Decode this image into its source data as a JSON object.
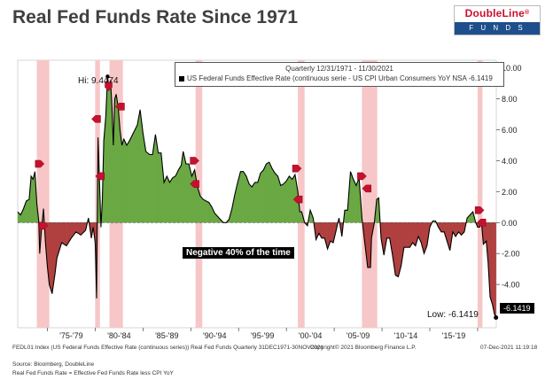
{
  "title": "Real Fed Funds Rate Since 1971",
  "logo": {
    "name": "DoubleLine",
    "sub": "F U N D S",
    "registered": "®"
  },
  "header": {
    "period": "Quarterly 12/31/1971 - 11/30/2021",
    "series": "US Federal Funds Effective Rate (continuous serie - US CPI Urban Consumers YoY NSA -6.1419"
  },
  "annotations": {
    "hi": "Hi: 9.4474",
    "low": "Low: -6.1419",
    "last_value": "-6.1419",
    "negative": "Negative 40% of the time"
  },
  "footer": {
    "index": "FEDL01 Index (US Federal Funds Effective Rate (continuous series)) Real Fed Funds  Quarterly 31DEC1971-30NOV2021",
    "copyright": "Copyright© 2021 Bloomberg Finance L.P.",
    "date": "07-Dec-2021 11:19:18",
    "source": "Source: Bloomberg, DoubleLine",
    "note": "Real Fed Funds Rate = Effective Fed Funds Rate less CPI YoY"
  },
  "colors": {
    "positive": "#6aa843",
    "negative": "#b0403f",
    "recession": "#f7c6c6",
    "marker": "#c8102e"
  },
  "chart_data": {
    "type": "area",
    "title": "Real Fed Funds Rate Since 1971",
    "x_range": [
      1971.9,
      2021.95
    ],
    "ylim": [
      -6.8,
      10.5
    ],
    "yticks": [
      10,
      8,
      6,
      4,
      2,
      0,
      -2,
      -4
    ],
    "ytick_labels": [
      "10.00",
      "8.00",
      "6.00",
      "4.00",
      "2.00",
      "0.00",
      "-2.00",
      "-4.00"
    ],
    "xticks": [
      {
        "label": "'75-'79",
        "x": 1977.5
      },
      {
        "label": "'80-'84",
        "x": 1982.5
      },
      {
        "label": "'85-'89",
        "x": 1987.5
      },
      {
        "label": "'90-'94",
        "x": 1992.5
      },
      {
        "label": "'95-'99",
        "x": 1997.5
      },
      {
        "label": "'00-'04",
        "x": 2002.5
      },
      {
        "label": "'05-'09",
        "x": 2007.5
      },
      {
        "label": "'10-'14",
        "x": 2012.5
      },
      {
        "label": "'15-'19",
        "x": 2017.5
      }
    ],
    "recessions": [
      [
        1973.9,
        1975.2
      ],
      [
        1980.0,
        1980.5
      ],
      [
        1981.5,
        1982.9
      ],
      [
        1990.5,
        1991.2
      ],
      [
        2001.2,
        2001.9
      ],
      [
        2007.9,
        2009.5
      ],
      [
        2020.0,
        2020.5
      ]
    ],
    "series": [
      {
        "name": "Real Fed Funds Rate",
        "points": [
          [
            1971.9,
            0.7
          ],
          [
            1972.2,
            0.5
          ],
          [
            1972.5,
            0.9
          ],
          [
            1972.8,
            1.4
          ],
          [
            1973.1,
            1.5
          ],
          [
            1973.3,
            3.0
          ],
          [
            1973.5,
            2.8
          ],
          [
            1973.7,
            3.3
          ],
          [
            1973.9,
            1.2
          ],
          [
            1974.1,
            0.1
          ],
          [
            1974.2,
            -2.0
          ],
          [
            1974.4,
            -0.3
          ],
          [
            1974.6,
            0.9
          ],
          [
            1974.8,
            -1.3
          ],
          [
            1975.0,
            -2.8
          ],
          [
            1975.2,
            -4.0
          ],
          [
            1975.5,
            -4.6
          ],
          [
            1975.8,
            -3.3
          ],
          [
            1976.0,
            -2.3
          ],
          [
            1976.5,
            -1.3
          ],
          [
            1977.0,
            -1.5
          ],
          [
            1977.5,
            -1.0
          ],
          [
            1978.0,
            -0.6
          ],
          [
            1978.5,
            -0.8
          ],
          [
            1979.0,
            -0.5
          ],
          [
            1979.3,
            0.3
          ],
          [
            1979.6,
            -1.0
          ],
          [
            1979.8,
            -0.3
          ],
          [
            1980.0,
            -1.3
          ],
          [
            1980.15,
            -4.9
          ],
          [
            1980.3,
            5.5
          ],
          [
            1980.45,
            2.8
          ],
          [
            1980.6,
            -0.3
          ],
          [
            1980.75,
            1.5
          ],
          [
            1980.9,
            5.3
          ],
          [
            1981.1,
            6.8
          ],
          [
            1981.3,
            9.45
          ],
          [
            1981.45,
            8.6
          ],
          [
            1981.6,
            9.2
          ],
          [
            1981.75,
            7.5
          ],
          [
            1981.9,
            5.0
          ],
          [
            1982.05,
            8.0
          ],
          [
            1982.2,
            8.3
          ],
          [
            1982.4,
            7.5
          ],
          [
            1982.6,
            6.0
          ],
          [
            1982.8,
            5.0
          ],
          [
            1983.0,
            5.4
          ],
          [
            1983.3,
            5.0
          ],
          [
            1983.6,
            5.3
          ],
          [
            1984.0,
            5.8
          ],
          [
            1984.4,
            6.3
          ],
          [
            1984.7,
            7.3
          ],
          [
            1985.0,
            5.8
          ],
          [
            1985.3,
            4.6
          ],
          [
            1985.7,
            4.4
          ],
          [
            1986.0,
            4.4
          ],
          [
            1986.3,
            5.7
          ],
          [
            1986.6,
            4.5
          ],
          [
            1986.9,
            4.5
          ],
          [
            1987.2,
            2.6
          ],
          [
            1987.5,
            3.0
          ],
          [
            1987.8,
            2.6
          ],
          [
            1988.1,
            2.9
          ],
          [
            1988.4,
            3.0
          ],
          [
            1988.7,
            3.4
          ],
          [
            1989.0,
            3.7
          ],
          [
            1989.2,
            4.6
          ],
          [
            1989.5,
            3.8
          ],
          [
            1989.8,
            3.8
          ],
          [
            1990.1,
            3.0
          ],
          [
            1990.4,
            3.4
          ],
          [
            1990.7,
            2.3
          ],
          [
            1991.0,
            1.7
          ],
          [
            1991.3,
            1.5
          ],
          [
            1991.6,
            1.4
          ],
          [
            1991.9,
            1.3
          ],
          [
            1992.2,
            1.0
          ],
          [
            1992.5,
            0.6
          ],
          [
            1992.8,
            0.4
          ],
          [
            1993.1,
            0.2
          ],
          [
            1993.4,
            0.0
          ],
          [
            1993.7,
            0.0
          ],
          [
            1994.0,
            0.2
          ],
          [
            1994.3,
            0.9
          ],
          [
            1994.6,
            1.8
          ],
          [
            1994.9,
            2.6
          ],
          [
            1995.2,
            3.3
          ],
          [
            1995.5,
            3.3
          ],
          [
            1995.8,
            3.0
          ],
          [
            1996.1,
            2.5
          ],
          [
            1996.4,
            2.3
          ],
          [
            1996.7,
            2.6
          ],
          [
            1997.0,
            2.6
          ],
          [
            1997.3,
            3.2
          ],
          [
            1997.6,
            3.4
          ],
          [
            1997.9,
            3.8
          ],
          [
            1998.2,
            3.9
          ],
          [
            1998.5,
            3.5
          ],
          [
            1998.8,
            3.2
          ],
          [
            1999.1,
            3.0
          ],
          [
            1999.4,
            2.4
          ],
          [
            1999.7,
            2.5
          ],
          [
            2000.0,
            2.7
          ],
          [
            2000.3,
            3.0
          ],
          [
            2000.6,
            2.8
          ],
          [
            2000.9,
            3.1
          ],
          [
            2001.2,
            2.0
          ],
          [
            2001.4,
            0.7
          ],
          [
            2001.6,
            0.7
          ],
          [
            2001.9,
            0.0
          ],
          [
            2002.2,
            -0.2
          ],
          [
            2002.5,
            0.8
          ],
          [
            2002.8,
            0.3
          ],
          [
            2003.1,
            -1.1
          ],
          [
            2003.4,
            -0.7
          ],
          [
            2003.7,
            -1.0
          ],
          [
            2004.0,
            -1.0
          ],
          [
            2004.3,
            -1.7
          ],
          [
            2004.6,
            -1.2
          ],
          [
            2004.9,
            -1.3
          ],
          [
            2005.2,
            -0.5
          ],
          [
            2005.5,
            0.3
          ],
          [
            2005.8,
            -0.9
          ],
          [
            2006.1,
            0.8
          ],
          [
            2006.4,
            0.8
          ],
          [
            2006.7,
            3.3
          ],
          [
            2007.0,
            2.8
          ],
          [
            2007.3,
            2.4
          ],
          [
            2007.6,
            2.9
          ],
          [
            2007.9,
            0.3
          ],
          [
            2008.2,
            -1.3
          ],
          [
            2008.5,
            -2.9
          ],
          [
            2008.8,
            -2.9
          ],
          [
            2008.9,
            -1.0
          ],
          [
            2009.2,
            0.0
          ],
          [
            2009.45,
            1.5
          ],
          [
            2009.65,
            1.6
          ],
          [
            2009.9,
            -1.0
          ],
          [
            2010.2,
            -2.1
          ],
          [
            2010.5,
            -1.0
          ],
          [
            2010.8,
            -1.0
          ],
          [
            2011.1,
            -2.1
          ],
          [
            2011.4,
            -3.4
          ],
          [
            2011.7,
            -3.5
          ],
          [
            2012.0,
            -2.8
          ],
          [
            2012.3,
            -1.6
          ],
          [
            2012.6,
            -1.6
          ],
          [
            2012.9,
            -1.6
          ],
          [
            2013.2,
            -1.3
          ],
          [
            2013.5,
            -1.5
          ],
          [
            2013.8,
            -0.9
          ],
          [
            2014.1,
            -1.3
          ],
          [
            2014.4,
            -2.0
          ],
          [
            2014.7,
            -1.5
          ],
          [
            2015.0,
            -0.3
          ],
          [
            2015.3,
            0.1
          ],
          [
            2015.6,
            0.1
          ],
          [
            2015.9,
            -0.3
          ],
          [
            2016.2,
            -0.6
          ],
          [
            2016.5,
            -0.6
          ],
          [
            2016.8,
            -1.2
          ],
          [
            2017.1,
            -1.8
          ],
          [
            2017.4,
            -0.6
          ],
          [
            2017.7,
            -0.9
          ],
          [
            2018.0,
            -0.6
          ],
          [
            2018.3,
            -0.8
          ],
          [
            2018.6,
            -0.6
          ],
          [
            2018.9,
            0.3
          ],
          [
            2019.2,
            0.5
          ],
          [
            2019.5,
            0.7
          ],
          [
            2019.8,
            0.0
          ],
          [
            2020.0,
            -0.3
          ],
          [
            2020.2,
            -0.3
          ],
          [
            2020.4,
            0.0
          ],
          [
            2020.6,
            -1.4
          ],
          [
            2020.9,
            -1.2
          ],
          [
            2021.1,
            -2.6
          ],
          [
            2021.3,
            -4.8
          ],
          [
            2021.55,
            -5.3
          ],
          [
            2021.75,
            -5.9
          ],
          [
            2021.92,
            -6.1419
          ]
        ]
      }
    ],
    "markers": [
      {
        "x": 1974.2,
        "y": 3.8,
        "dir": "right"
      },
      {
        "x": 1974.6,
        "y": -0.2,
        "dir": "right"
      },
      {
        "x": 1980.1,
        "y": 6.7,
        "dir": "left"
      },
      {
        "x": 1980.5,
        "y": 3.0,
        "dir": "left"
      },
      {
        "x": 1981.4,
        "y": 8.8,
        "dir": "down"
      },
      {
        "x": 1982.6,
        "y": 7.5,
        "dir": "left"
      },
      {
        "x": 1990.4,
        "y": 4.0,
        "dir": "right"
      },
      {
        "x": 1990.4,
        "y": 2.5,
        "dir": "left"
      },
      {
        "x": 2001.1,
        "y": 3.5,
        "dir": "right"
      },
      {
        "x": 2001.2,
        "y": 1.5,
        "dir": "left"
      },
      {
        "x": 2007.9,
        "y": 3.0,
        "dir": "right"
      },
      {
        "x": 2008.4,
        "y": 2.2,
        "dir": "left"
      },
      {
        "x": 2020.2,
        "y": 0.8,
        "dir": "right"
      },
      {
        "x": 2020.4,
        "y": 0.0,
        "dir": "left"
      }
    ]
  }
}
